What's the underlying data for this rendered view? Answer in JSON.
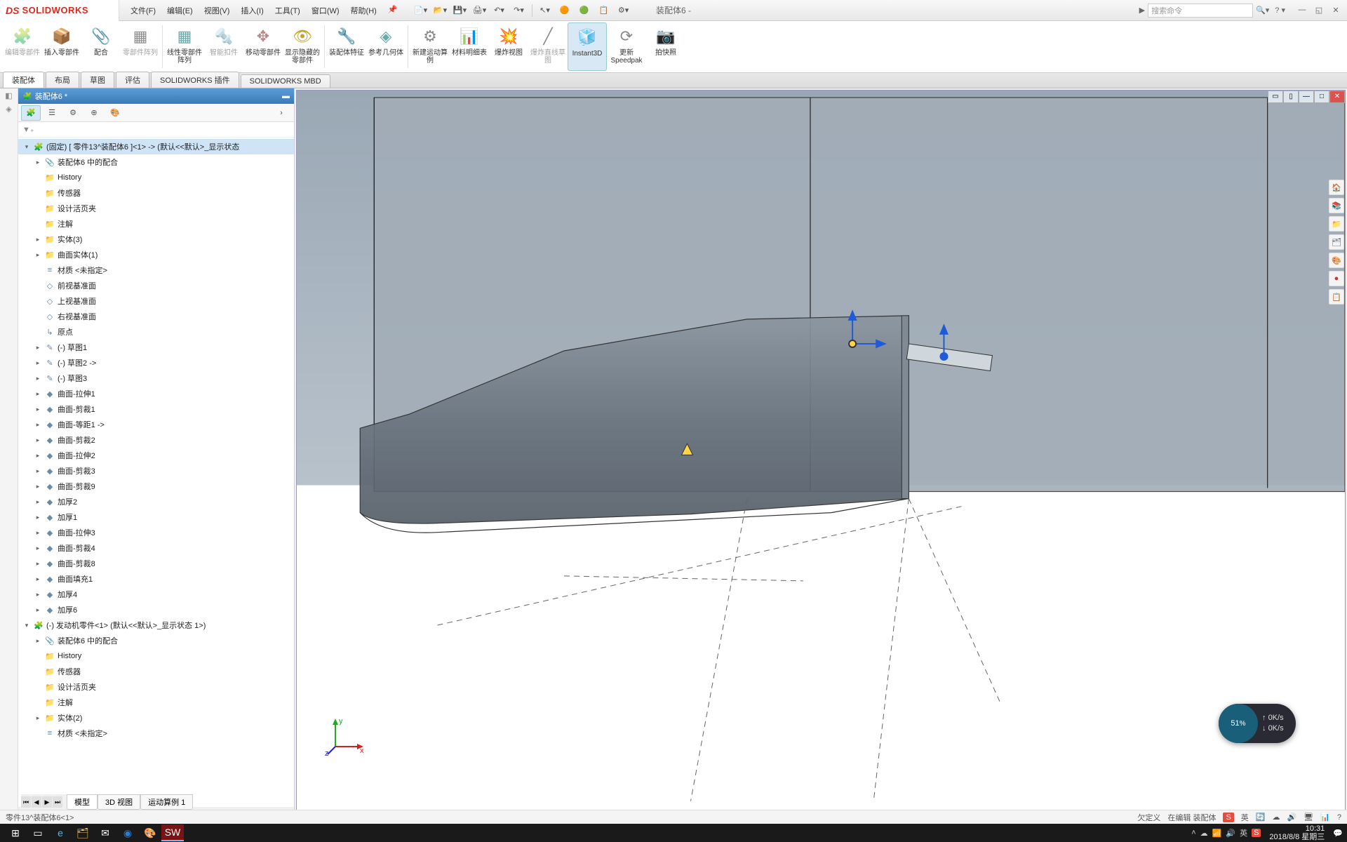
{
  "app": {
    "logo_prefix": "DS",
    "logo_text": "SOLIDWORKS"
  },
  "menu": {
    "file": "文件(F)",
    "edit": "编辑(E)",
    "view": "视图(V)",
    "insert": "插入(I)",
    "tools": "工具(T)",
    "window": "窗口(W)",
    "help": "帮助(H)"
  },
  "doc_title": "装配体6 -",
  "search_placeholder": "搜索命令",
  "ribbon": {
    "edit_part": "编辑零部件",
    "insert_part": "插入零部件",
    "mate": "配合",
    "pattern": "零部件阵列",
    "linear_pattern": "线性零部件阵列",
    "smart_fastener": "智能扣件",
    "move_comp": "移动零部件",
    "show_hidden": "显示隐藏的零部件",
    "assy_feat": "装配体特征",
    "ref_geom": "参考几何体",
    "new_motion": "新建运动算例",
    "bom": "材料明细表",
    "explode": "爆炸视图",
    "explode_line": "爆炸直线草图",
    "instant3d": "Instant3D",
    "speedpak": "更新Speedpak",
    "snapshot": "拍快照"
  },
  "tabs": {
    "assembly": "装配体",
    "layout": "布局",
    "sketch": "草图",
    "evaluate": "评估",
    "sw_addins": "SOLIDWORKS 插件",
    "sw_mbd": "SOLIDWORKS MBD"
  },
  "tree_title": "装配体6 *",
  "tree": {
    "root": "(固定) [ 零件13^装配体6 ]<1> -> (默认<<默认>_显示状态",
    "items": [
      "装配体6 中的配合",
      "History",
      "传感器",
      "设计活页夹",
      "注解",
      "实体(3)",
      "曲面实体(1)",
      "材质 <未指定>",
      "前视基准面",
      "上视基准面",
      "右视基准面",
      "原点",
      "(-) 草图1",
      "(-) 草图2 ->",
      "(-) 草图3",
      "曲面-拉伸1",
      "曲面-剪裁1",
      "曲面-等距1 ->",
      "曲面-剪裁2",
      "曲面-拉伸2",
      "曲面-剪裁3",
      "曲面-剪裁9",
      "加厚2",
      "加厚1",
      "曲面-拉伸3",
      "曲面-剪裁4",
      "曲面-剪裁8",
      "曲面填充1",
      "加厚4",
      "加厚6"
    ],
    "second_root": "(-) 发动机零件<1> (默认<<默认>_显示状态 1>)",
    "second_items": [
      "装配体6 中的配合",
      "History",
      "传感器",
      "设计活页夹",
      "注解",
      "实体(2)",
      "材质 <未指定>"
    ]
  },
  "bottom_tabs": {
    "model": "模型",
    "view3d": "3D 视图",
    "motion": "运动算例 1"
  },
  "status": {
    "left": "零件13^装配体6<1>",
    "undef": "欠定义",
    "editing": "在编辑 装配体",
    "ime": "英"
  },
  "network": {
    "percent": "51",
    "unit": "%",
    "up": "0K/s",
    "down": "0K/s"
  },
  "clock": {
    "time": "10:31",
    "date": "2018/8/8 星期三"
  },
  "colors": {
    "brand": "#da291c",
    "accent": "#3a7ab8",
    "vp_sky": "#92a0ae",
    "vp_ground": "#ffffff"
  },
  "triad": {
    "x": "x",
    "y": "y",
    "z": "z"
  }
}
